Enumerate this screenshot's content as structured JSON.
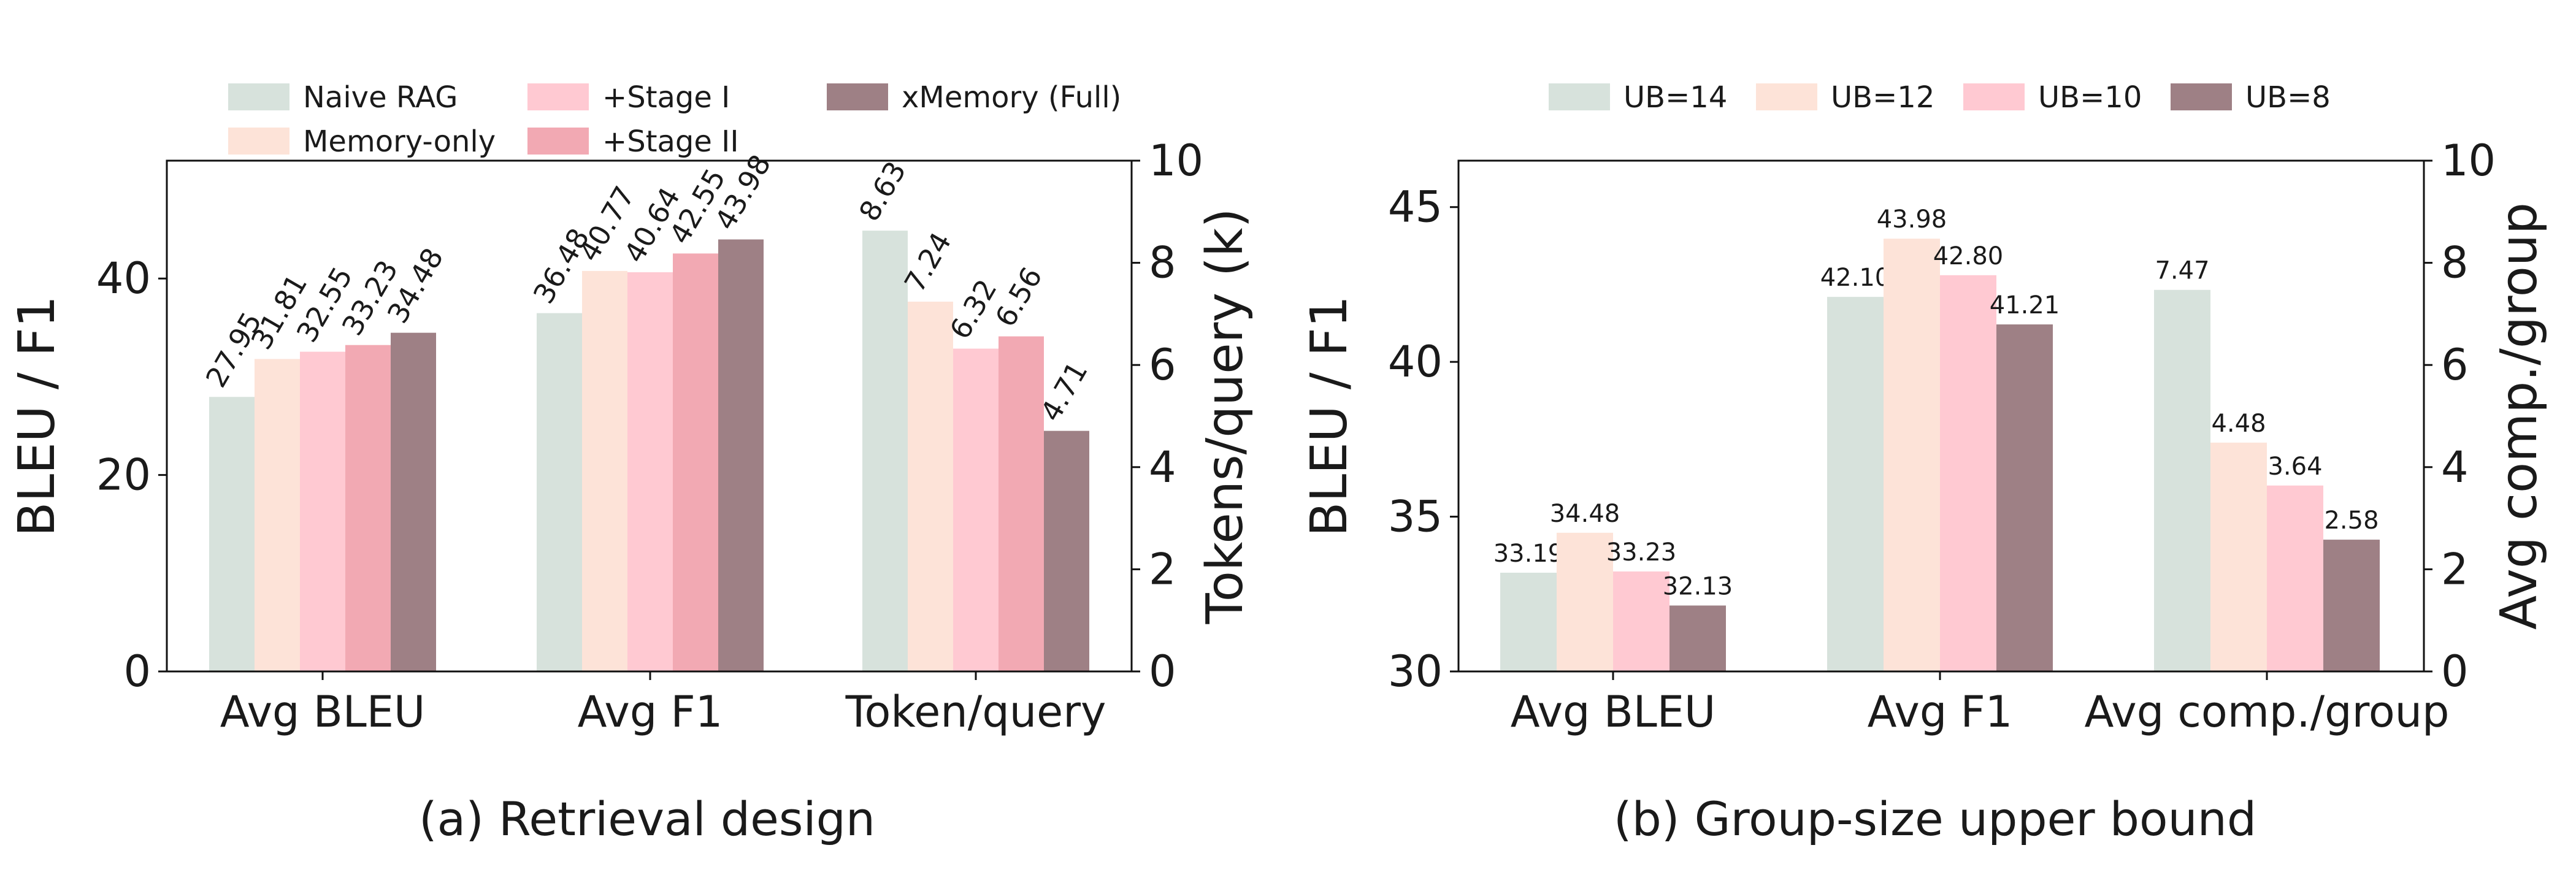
{
  "chart_data": [
    {
      "type": "bar",
      "caption": "(a) Retrieval design",
      "categories": [
        "Avg BLEU",
        "Avg F1",
        "Token/query"
      ],
      "ylabel": "BLEU / F1",
      "ylim": [
        0,
        52
      ],
      "yticks": [
        0,
        20,
        40
      ],
      "y2label": "Tokens/query (k)",
      "y2lim": [
        0,
        10
      ],
      "y2ticks": [
        0,
        2,
        4,
        6,
        8,
        10
      ],
      "legend_position": "top",
      "grid": false,
      "series": [
        {
          "name": "Naive RAG",
          "color": "#d7e2dc",
          "values": [
            27.95,
            36.48,
            8.63
          ],
          "labels": [
            "27.95",
            "36.48",
            "8.63"
          ]
        },
        {
          "name": "Memory-only",
          "color": "#fde3d8",
          "values": [
            31.81,
            40.77,
            7.24
          ],
          "labels": [
            "31.81",
            "40.77",
            "7.24"
          ]
        },
        {
          "name": "+Stage I",
          "color": "#ffc9d2",
          "values": [
            32.55,
            40.64,
            6.32
          ],
          "labels": [
            "32.55",
            "40.64",
            "6.32"
          ]
        },
        {
          "name": "+Stage II",
          "color": "#f2a9b3",
          "values": [
            33.23,
            42.55,
            6.56
          ],
          "labels": [
            "33.23",
            "42.55",
            "6.56"
          ]
        },
        {
          "name": "xMemory (Full)",
          "color": "#9e8085",
          "values": [
            34.48,
            43.98,
            4.71
          ],
          "labels": [
            "34.48",
            "43.98",
            "4.71"
          ]
        }
      ],
      "secondary_axis_categories": [
        "Token/query"
      ]
    },
    {
      "type": "bar",
      "caption": "(b) Group-size upper bound",
      "categories": [
        "Avg BLEU",
        "Avg F1",
        "Avg comp./group"
      ],
      "ylabel": "BLEU / F1",
      "ylim": [
        30,
        46.5
      ],
      "yticks": [
        30,
        35,
        40,
        45
      ],
      "y2label": "Avg comp./group",
      "y2lim": [
        0,
        10
      ],
      "y2ticks": [
        0,
        2,
        4,
        6,
        8,
        10
      ],
      "legend_position": "top",
      "grid": false,
      "series": [
        {
          "name": "UB=14",
          "color": "#d7e2dc",
          "values": [
            33.19,
            42.1,
            7.47
          ],
          "labels": [
            "33.19",
            "42.10",
            "7.47"
          ]
        },
        {
          "name": "UB=12",
          "color": "#fde3d8",
          "values": [
            34.48,
            43.98,
            4.48
          ],
          "labels": [
            "34.48",
            "43.98",
            "4.48"
          ]
        },
        {
          "name": "UB=10",
          "color": "#ffc9d2",
          "values": [
            33.23,
            42.8,
            3.64
          ],
          "labels": [
            "33.23",
            "42.80",
            "3.64"
          ]
        },
        {
          "name": "UB=8",
          "color": "#9e8085",
          "values": [
            32.13,
            41.21,
            2.58
          ],
          "labels": [
            "32.13",
            "41.21",
            "2.58"
          ]
        }
      ],
      "secondary_axis_categories": [
        "Avg comp./group"
      ]
    }
  ]
}
